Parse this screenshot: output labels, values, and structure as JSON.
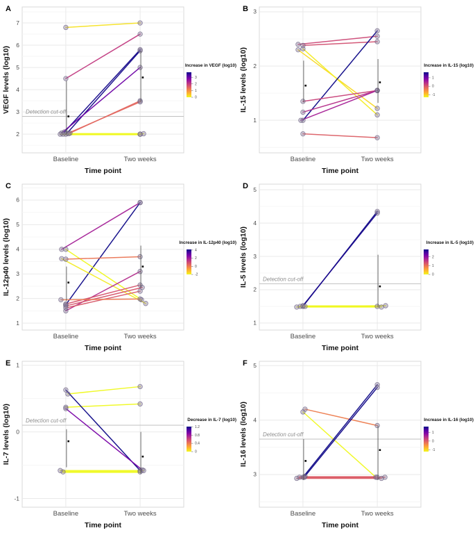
{
  "figure": {
    "description": "Six-panel paired slope charts of cytokine levels at two time points",
    "panel_labels": [
      "A",
      "B",
      "C",
      "D",
      "E",
      "F"
    ]
  },
  "colors": {
    "background": "#ffffff",
    "panel_border": "#d9d9d9",
    "grid_major": "#e9e9e9",
    "grid_minor": "#f4f4f4",
    "cutoff_line": "#c0c0c0",
    "cutoff_text": "#8f8f8f",
    "tick_text": "#4c4c4c",
    "axis_title_text": "#111111",
    "point_fill": "#8f82a0",
    "point_stroke": "#5f5376",
    "errorbar_line": "#4a4a4a",
    "mean_point": "#000000",
    "plasma_anchors": [
      "#0d0887",
      "#4b03a1",
      "#7d03a8",
      "#a82296",
      "#cb4679",
      "#e56b5d",
      "#f89441",
      "#fdc328",
      "#f0f921"
    ]
  },
  "chart_data": [
    {
      "type": "line",
      "panel_label": "A",
      "ylabel": "VEGF levels (log10)",
      "xlabel": "Time point",
      "categories": [
        "Baseline",
        "Two weeks"
      ],
      "yticks": [
        2,
        3,
        4,
        5,
        6,
        7
      ],
      "ylim": [
        1.16,
        7.72
      ],
      "detection_cutoff": {
        "value": 2.8,
        "label": "Detection cut-off"
      },
      "legend": {
        "title": "Increase in VEGF (log10)",
        "direction": "increase",
        "domain": [
          0,
          3.75
        ],
        "ticks": [
          3,
          2,
          1,
          0
        ]
      },
      "pairs": [
        {
          "b": 6.8,
          "t": 7.0
        },
        {
          "b": 4.5,
          "t": 6.5
        },
        {
          "b": 2.1,
          "t": 5.8,
          "bj": -2
        },
        {
          "b": 2.05,
          "t": 5.75,
          "bj": 2
        },
        {
          "b": 2.05,
          "t": 5.0,
          "bj": -6
        },
        {
          "b": 2.05,
          "t": 3.5,
          "bj": 6
        },
        {
          "b": 2.0,
          "t": 3.45
        },
        {
          "b": 2.0,
          "t": 2.0,
          "bj": -4,
          "thick": true
        },
        {
          "b": 2.02,
          "t": 2.02,
          "bj": 4,
          "tj": 5
        },
        {
          "b": 2.0,
          "t": 2.0,
          "bj": -8
        }
      ],
      "summary": {
        "baseline": {
          "lo": 2.0,
          "hi": 4.4,
          "mean": 2.8
        },
        "two_weeks": {
          "lo": 3.45,
          "hi": 5.75,
          "mean": 4.55
        }
      }
    },
    {
      "type": "line",
      "panel_label": "B",
      "ylabel": "IL-15 levels (log10)",
      "xlabel": "Time point",
      "categories": [
        "Baseline",
        "Two weeks"
      ],
      "yticks": [
        1,
        2,
        3
      ],
      "ylim": [
        0.4,
        3.09
      ],
      "detection_cutoff": null,
      "legend": {
        "title": "Increase in IL-15 (log10)",
        "direction": "increase",
        "domain": [
          -1.3,
          1.65
        ],
        "ticks": [
          1,
          0,
          -1
        ]
      },
      "pairs": [
        {
          "b": 2.4,
          "t": 2.55,
          "bj": -7
        },
        {
          "b": 2.38,
          "t": 2.45
        },
        {
          "b": 2.3,
          "t": 1.22,
          "bj": -7
        },
        {
          "b": 2.32,
          "t": 1.1
        },
        {
          "b": 1.0,
          "t": 2.65
        },
        {
          "b": 1.35,
          "t": 1.55
        },
        {
          "b": 1.15,
          "t": 1.55
        },
        {
          "b": 1.0,
          "t": 1.55,
          "bj": -3
        },
        {
          "b": 0.75,
          "t": 0.68
        }
      ],
      "summary": {
        "baseline": {
          "lo": 1.33,
          "hi": 2.1,
          "mean": 1.64
        },
        "two_weeks": {
          "lo": 1.32,
          "hi": 2.13,
          "mean": 1.7
        }
      }
    },
    {
      "type": "line",
      "panel_label": "C",
      "ylabel": "IL-12p40 levels (log10)",
      "xlabel": "Time point",
      "categories": [
        "Baseline",
        "Two weeks"
      ],
      "yticks": [
        1,
        2,
        3,
        4,
        5,
        6
      ],
      "ylim": [
        0.72,
        6.65
      ],
      "detection_cutoff": null,
      "legend": {
        "title": "Increase in IL-12p40 (log10)",
        "direction": "increase",
        "domain": [
          -2,
          4.15
        ],
        "ticks": [
          4,
          2,
          0,
          -2
        ]
      },
      "pairs": [
        {
          "b": 4.0,
          "t": 5.9,
          "bj": -6
        },
        {
          "b": 1.75,
          "t": 5.9
        },
        {
          "b": 4.0,
          "t": 1.95,
          "tj": 2
        },
        {
          "b": 3.62,
          "t": 1.8,
          "bj": -6,
          "tj": 8
        },
        {
          "b": 3.6,
          "t": 3.7
        },
        {
          "b": 1.5,
          "t": 3.1
        },
        {
          "b": 1.78,
          "t": 2.55
        },
        {
          "b": 1.7,
          "t": 2.45,
          "tj": 3
        },
        {
          "b": 1.62,
          "t": 2.3
        },
        {
          "b": 1.95,
          "t": 1.98,
          "bj": -7
        }
      ],
      "summary": {
        "baseline": {
          "lo": 1.9,
          "hi": 3.3,
          "mean": 2.65
        },
        "two_weeks": {
          "lo": 2.45,
          "hi": 4.15,
          "mean": 3.3
        }
      }
    },
    {
      "type": "line",
      "panel_label": "D",
      "ylabel": "IL-5 levels (log10)",
      "xlabel": "Time point",
      "categories": [
        "Baseline",
        "Two weeks"
      ],
      "yticks": [
        1,
        2,
        3,
        4,
        5
      ],
      "ylim": [
        0.79,
        5.17
      ],
      "detection_cutoff": {
        "value": 2.18,
        "label": "Detection cut-off"
      },
      "legend": {
        "title": "Increase in IL-5 (log10)",
        "direction": "increase",
        "domain": [
          0,
          2.85
        ],
        "ticks": [
          2,
          1,
          0
        ]
      },
      "pairs": [
        {
          "b": 1.5,
          "t": 4.35
        },
        {
          "b": 1.52,
          "t": 4.3
        },
        {
          "b": 1.5,
          "t": 1.5,
          "bj": -4,
          "thick": true
        },
        {
          "b": 1.48,
          "t": 1.48,
          "bj": -9,
          "tj": 6
        },
        {
          "b": 1.5,
          "t": 1.52,
          "bj": 3,
          "tj": 12
        }
      ],
      "summary": {
        "baseline": null,
        "two_weeks": {
          "lo": 1.48,
          "hi": 3.05,
          "mean": 2.1
        }
      }
    },
    {
      "type": "line",
      "panel_label": "E",
      "ylabel": "IL-7 levels (log10)",
      "xlabel": "Time point",
      "categories": [
        "Baseline",
        "Two weeks"
      ],
      "yticks": [
        -1,
        0,
        1
      ],
      "ylim": [
        -1.13,
        1.06
      ],
      "detection_cutoff": {
        "value": 0.1,
        "label": "Detection cut-off"
      },
      "legend": {
        "title": "Decrease in IL-7 (log10)",
        "direction": "decrease",
        "domain": [
          0,
          1.21
        ],
        "ticks": [
          1.2,
          0.8,
          0.4,
          0.0
        ]
      },
      "pairs": [
        {
          "b": 0.57,
          "t": 0.68,
          "bj": 3
        },
        {
          "b": 0.37,
          "t": 0.42
        },
        {
          "b": 0.63,
          "t": -0.58
        },
        {
          "b": 0.35,
          "t": -0.57,
          "tj": 3
        },
        {
          "b": -0.6,
          "t": -0.6,
          "bj": -4,
          "thick": true
        },
        {
          "b": -0.58,
          "t": -0.58,
          "bj": -8,
          "tj": 5
        }
      ],
      "summary": {
        "baseline": {
          "lo": -0.53,
          "hi": 0.04,
          "mean": -0.14
        },
        "two_weeks": {
          "lo": -0.63,
          "hi": 0.0,
          "mean": -0.37
        }
      }
    },
    {
      "type": "line",
      "panel_label": "F",
      "ylabel": "IL-16 levels (log10)",
      "xlabel": "Time point",
      "categories": [
        "Baseline",
        "Two weeks"
      ],
      "yticks": [
        3,
        4,
        5
      ],
      "ylim": [
        2.4,
        5.08
      ],
      "detection_cutoff": {
        "value": 3.65,
        "label": "Detection cut-off"
      },
      "legend": {
        "title": "Increase in IL-16 (log10)",
        "direction": "increase",
        "domain": [
          -1.2,
          1.65
        ],
        "ticks": [
          1,
          0,
          -1
        ]
      },
      "pairs": [
        {
          "b": 4.2,
          "t": 3.9,
          "bj": 3
        },
        {
          "b": 4.15,
          "t": 2.95,
          "tj": -2
        },
        {
          "b": 2.95,
          "t": 4.65
        },
        {
          "b": 2.97,
          "t": 4.6,
          "bj": 3
        },
        {
          "b": 2.95,
          "t": 2.95,
          "bj": -5,
          "thick": true
        },
        {
          "b": 2.93,
          "t": 2.93,
          "bj": -9,
          "tj": 6
        },
        {
          "b": 2.95,
          "t": 2.95,
          "bj": 2,
          "tj": 11
        }
      ],
      "summary": {
        "baseline": {
          "lo": 2.9,
          "hi": 3.65,
          "mean": 3.25
        },
        "two_weeks": {
          "lo": 2.9,
          "hi": 3.9,
          "mean": 3.45
        }
      }
    }
  ]
}
